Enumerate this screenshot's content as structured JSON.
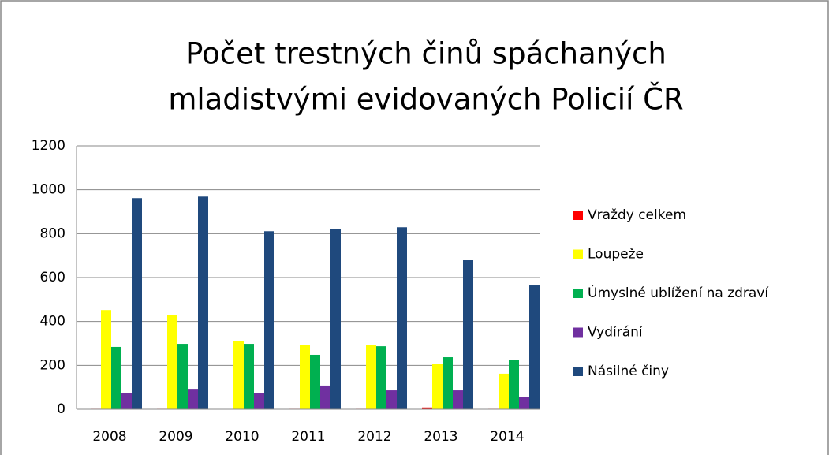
{
  "chart_data": {
    "type": "bar",
    "title": [
      "Počet trestných činů spáchaných",
      "mladistvými evidovaných Policií ČR"
    ],
    "categories": [
      "2008",
      "2009",
      "2010",
      "2011",
      "2012",
      "2013",
      "2014"
    ],
    "series": [
      {
        "name": "Vraždy celkem",
        "color": "#ff0000",
        "values": [
          2,
          2,
          1,
          2,
          2,
          8,
          2
        ]
      },
      {
        "name": "Loupeže",
        "color": "#ffff00",
        "values": [
          452,
          431,
          312,
          294,
          291,
          208,
          162
        ]
      },
      {
        "name": "Úmyslné ublížení na zdraví",
        "color": "#00b050",
        "values": [
          284,
          298,
          298,
          248,
          287,
          237,
          223
        ]
      },
      {
        "name": "Vydírání",
        "color": "#7030a0",
        "values": [
          75,
          93,
          72,
          108,
          86,
          86,
          57
        ]
      },
      {
        "name": "Násilné činy",
        "color": "#1f497d",
        "values": [
          962,
          969,
          811,
          822,
          829,
          679,
          564
        ]
      }
    ],
    "ylim": [
      0,
      1200
    ],
    "yticks": [
      0,
      200,
      400,
      600,
      800,
      1000,
      1200
    ],
    "grid": true,
    "legend": "right"
  }
}
